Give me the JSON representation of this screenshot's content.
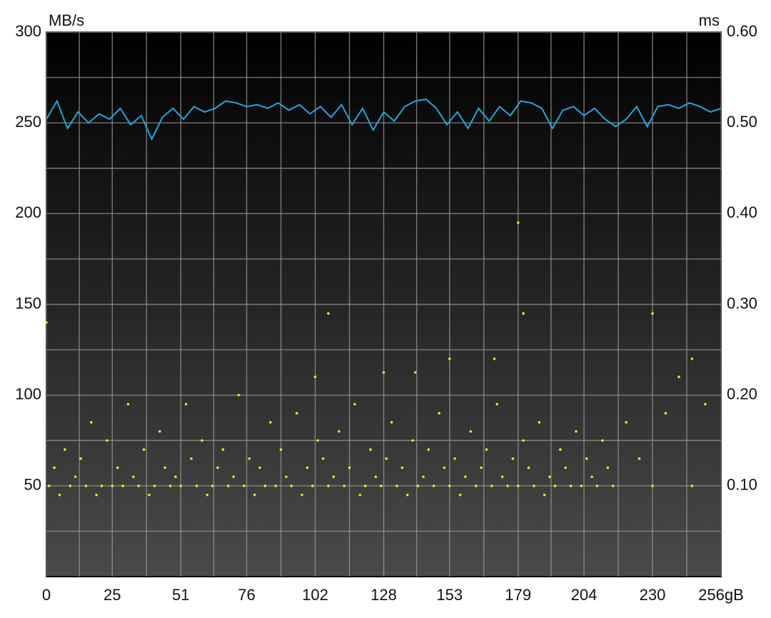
{
  "chart_data": {
    "type": "line-scatter",
    "ylabel": "MB/s",
    "y2label": "ms",
    "xlim": [
      0,
      256
    ],
    "xticks": [
      0,
      25,
      51,
      76,
      102,
      128,
      153,
      179,
      204,
      230,
      {
        "value": 256,
        "label": "256gB"
      }
    ],
    "ylim": [
      0,
      300
    ],
    "yticks": [
      50,
      100,
      150,
      200,
      250,
      300
    ],
    "y2lim": [
      0,
      0.6
    ],
    "y2ticks": [
      {
        "value": 0.1,
        "label": "0.10"
      },
      {
        "value": 0.2,
        "label": "0.20"
      },
      {
        "value": 0.3,
        "label": "0.30"
      },
      {
        "value": 0.4,
        "label": "0.40"
      },
      {
        "value": 0.5,
        "label": "0.50"
      },
      {
        "value": 0.6,
        "label": "0.60"
      }
    ],
    "grid": true,
    "series": [
      {
        "type": "line",
        "color": "#1fa7dc",
        "x": [
          0,
          4,
          8,
          12,
          16,
          20,
          24,
          28,
          32,
          36,
          40,
          44,
          48,
          52,
          56,
          60,
          64,
          68,
          72,
          76,
          80,
          84,
          88,
          92,
          96,
          100,
          104,
          108,
          112,
          116,
          120,
          124,
          128,
          132,
          136,
          140,
          144,
          148,
          152,
          156,
          160,
          164,
          168,
          172,
          176,
          180,
          184,
          188,
          192,
          196,
          200,
          204,
          208,
          212,
          216,
          220,
          224,
          228,
          232,
          236,
          240,
          244,
          248,
          252,
          256
        ],
        "values": [
          252,
          262,
          247,
          256,
          250,
          255,
          252,
          258,
          249,
          254,
          241,
          253,
          258,
          252,
          259,
          256,
          258,
          262,
          261,
          259,
          260,
          258,
          261,
          257,
          260,
          255,
          259,
          253,
          260,
          249,
          258,
          246,
          256,
          251,
          259,
          262,
          263,
          258,
          249,
          256,
          247,
          258,
          251,
          259,
          254,
          262,
          261,
          258,
          247,
          257,
          259,
          254,
          258,
          252,
          248,
          252,
          259,
          248,
          259,
          260,
          258,
          261,
          259,
          256,
          258
        ]
      },
      {
        "type": "scatter",
        "axis": "y2",
        "color": "#f2e21c",
        "x": [
          1,
          3,
          5,
          7,
          9,
          11,
          13,
          15,
          17,
          19,
          21,
          23,
          25,
          27,
          29,
          31,
          33,
          35,
          37,
          39,
          41,
          43,
          45,
          47,
          49,
          51,
          53,
          55,
          57,
          59,
          61,
          63,
          65,
          67,
          69,
          71,
          73,
          75,
          77,
          79,
          81,
          83,
          85,
          87,
          89,
          91,
          93,
          95,
          97,
          99,
          101,
          103,
          105,
          107,
          109,
          111,
          113,
          115,
          117,
          119,
          121,
          123,
          125,
          127,
          129,
          131,
          133,
          135,
          137,
          139,
          141,
          143,
          145,
          147,
          149,
          151,
          153,
          155,
          157,
          159,
          161,
          163,
          165,
          167,
          169,
          171,
          173,
          175,
          177,
          179,
          181,
          183,
          185,
          187,
          189,
          191,
          193,
          195,
          197,
          199,
          201,
          203,
          205,
          207,
          209,
          211,
          213,
          215,
          220,
          225,
          230,
          235,
          240,
          245,
          250,
          0,
          107,
          179,
          181,
          230,
          153,
          170,
          245,
          128,
          140,
          102
        ],
        "values": [
          0.1,
          0.12,
          0.09,
          0.14,
          0.1,
          0.11,
          0.13,
          0.1,
          0.17,
          0.09,
          0.1,
          0.15,
          0.1,
          0.12,
          0.1,
          0.19,
          0.11,
          0.1,
          0.14,
          0.09,
          0.1,
          0.16,
          0.12,
          0.1,
          0.11,
          0.1,
          0.19,
          0.13,
          0.1,
          0.15,
          0.09,
          0.1,
          0.12,
          0.14,
          0.1,
          0.11,
          0.2,
          0.1,
          0.13,
          0.09,
          0.12,
          0.1,
          0.17,
          0.1,
          0.14,
          0.11,
          0.1,
          0.18,
          0.09,
          0.12,
          0.1,
          0.15,
          0.13,
          0.1,
          0.11,
          0.16,
          0.1,
          0.12,
          0.19,
          0.09,
          0.1,
          0.14,
          0.11,
          0.1,
          0.13,
          0.17,
          0.1,
          0.12,
          0.09,
          0.15,
          0.1,
          0.11,
          0.14,
          0.1,
          0.18,
          0.12,
          0.1,
          0.13,
          0.09,
          0.11,
          0.16,
          0.1,
          0.12,
          0.14,
          0.1,
          0.19,
          0.11,
          0.1,
          0.13,
          0.1,
          0.15,
          0.12,
          0.1,
          0.17,
          0.09,
          0.11,
          0.1,
          0.14,
          0.12,
          0.1,
          0.16,
          0.1,
          0.13,
          0.11,
          0.1,
          0.15,
          0.12,
          0.1,
          0.17,
          0.13,
          0.1,
          0.18,
          0.22,
          0.1,
          0.19,
          0.28,
          0.29,
          0.39,
          0.29,
          0.29,
          0.24,
          0.24,
          0.24,
          0.225,
          0.225,
          0.22
        ]
      }
    ]
  }
}
